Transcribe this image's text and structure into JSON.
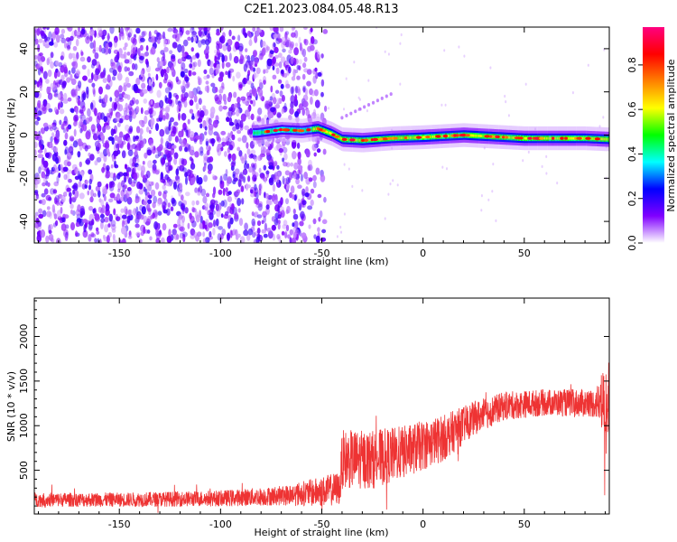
{
  "figure": {
    "title": "C2E1.2023.084.05.48.R13"
  },
  "chart_data": [
    {
      "type": "heatmap",
      "xlabel": "Height of straight line (km)",
      "ylabel": "Frequency (Hz)",
      "xlim": [
        -192,
        92
      ],
      "ylim": [
        -50,
        50
      ],
      "x_ticks": [
        -150,
        -100,
        -50,
        0,
        50
      ],
      "y_ticks": [
        -40,
        -20,
        0,
        20,
        40
      ],
      "colorbar": {
        "label": "Normalized spectral amplitude",
        "range": [
          0,
          0.97
        ],
        "ticks": [
          0.0,
          0.2,
          0.4,
          0.6,
          0.8
        ],
        "colormap": [
          "#ffffff",
          "#8000ff",
          "#0000ff",
          "#00ffff",
          "#00ff00",
          "#ffff00",
          "#ff8000",
          "#ff0000",
          "#ff0080"
        ]
      },
      "signal_track": [
        {
          "x": -82,
          "y": 1.0
        },
        {
          "x": -70,
          "y": 2.5
        },
        {
          "x": -60,
          "y": 2.0
        },
        {
          "x": -52,
          "y": 3.0
        },
        {
          "x": -45,
          "y": 0.5
        },
        {
          "x": -40,
          "y": -2.0
        },
        {
          "x": -30,
          "y": -2.5
        },
        {
          "x": -15,
          "y": -1.5
        },
        {
          "x": 0,
          "y": -1.0
        },
        {
          "x": 20,
          "y": 0
        },
        {
          "x": 50,
          "y": -1.5
        },
        {
          "x": 80,
          "y": -1.5
        },
        {
          "x": 92,
          "y": -2.0
        }
      ]
    },
    {
      "type": "line",
      "xlabel": "Height of straight line (km)",
      "ylabel": "SNR (10 * v/v)",
      "xlim": [
        -192,
        92
      ],
      "ylim": [
        10,
        2430
      ],
      "x_ticks": [
        -150,
        -100,
        -50,
        0,
        50
      ],
      "y_ticks": [
        500,
        1000,
        1500,
        2000
      ],
      "line_color": "#ee3333",
      "envelope": [
        {
          "x": -192,
          "mean": 170,
          "amp": 80
        },
        {
          "x": -150,
          "mean": 170,
          "amp": 80
        },
        {
          "x": -100,
          "mean": 185,
          "amp": 90
        },
        {
          "x": -70,
          "mean": 215,
          "amp": 110
        },
        {
          "x": -50,
          "mean": 260,
          "amp": 170
        },
        {
          "x": -41,
          "mean": 300,
          "amp": 190
        },
        {
          "x": -40,
          "mean": 620,
          "amp": 330
        },
        {
          "x": -25,
          "mean": 620,
          "amp": 330
        },
        {
          "x": -10,
          "mean": 700,
          "amp": 300
        },
        {
          "x": 0,
          "mean": 780,
          "amp": 280
        },
        {
          "x": 10,
          "mean": 860,
          "amp": 260
        },
        {
          "x": 25,
          "mean": 1080,
          "amp": 190
        },
        {
          "x": 40,
          "mean": 1220,
          "amp": 160
        },
        {
          "x": 60,
          "mean": 1260,
          "amp": 150
        },
        {
          "x": 85,
          "mean": 1250,
          "amp": 160
        },
        {
          "x": 92,
          "mean": 1300,
          "amp": 500
        }
      ]
    }
  ]
}
